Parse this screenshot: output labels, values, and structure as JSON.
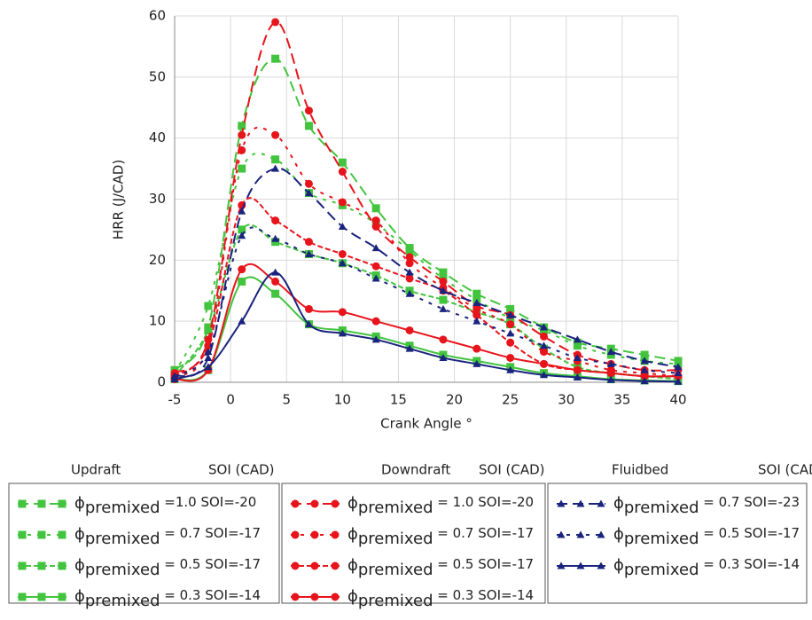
{
  "chart_data": {
    "type": "line",
    "x_label": "Crank Angle °",
    "y_label": "HRR (J/CAD)",
    "x": [
      -5,
      -2,
      1,
      4,
      7,
      10,
      13,
      16,
      19,
      22,
      25,
      28,
      31,
      34,
      37,
      40
    ],
    "xlim": [
      -5,
      40
    ],
    "xticks": [
      -5,
      0,
      5,
      10,
      15,
      20,
      25,
      30,
      35,
      40
    ],
    "ylim": [
      0,
      60
    ],
    "yticks": [
      0,
      10,
      20,
      30,
      40,
      50,
      60
    ],
    "grid": true,
    "legend_groups": [
      {
        "title": "Updraft",
        "subtitle": "SOI (CAD)"
      },
      {
        "title": "Downdraft",
        "subtitle": "SOI (CAD)"
      },
      {
        "title": "Fluidbed",
        "subtitle": "SOI (CAD)"
      }
    ],
    "series": [
      {
        "name": "ϕpremixed =1.0 SOI=-20",
        "color": "#43c43f",
        "marker": "square",
        "dash": "long",
        "values": [
          2,
          9,
          42,
          53,
          42,
          36,
          28.5,
          22,
          18,
          14.5,
          12,
          9,
          6.5,
          5.5,
          4.5,
          3.5
        ]
      },
      {
        "name": "ϕpremixed = 0.7 SOI=-17",
        "color": "#43c43f",
        "marker": "square",
        "dash": "dot",
        "values": [
          1.5,
          12.5,
          35,
          36.5,
          31,
          29,
          26,
          21.5,
          17,
          13.5,
          10.5,
          8.5,
          6,
          4.5,
          3.5,
          3
        ]
      },
      {
        "name": "ϕpremixed = 0.5 SOI=-17",
        "color": "#43c43f",
        "marker": "square",
        "dash": "short",
        "values": [
          1,
          8.5,
          25,
          23,
          21,
          19.5,
          17.5,
          15,
          13.5,
          11.5,
          9.5,
          5.5,
          2.5,
          1.5,
          1,
          0.5
        ]
      },
      {
        "name": "ϕpremixed = 0.3 SOI=-14",
        "color": "#43c43f",
        "marker": "square",
        "dash": "solid",
        "values": [
          0.5,
          2,
          16.5,
          14.5,
          9.5,
          8.5,
          7.5,
          6,
          4.5,
          3.5,
          2.5,
          1.5,
          1,
          0.5,
          0.3,
          0.2
        ]
      },
      {
        "name": "ϕpremixed = 1.0 SOI=-20",
        "color": "#e8141c",
        "marker": "circle",
        "dash": "long",
        "values": [
          1.5,
          7,
          40.5,
          59,
          44.5,
          34.5,
          25.5,
          20.5,
          16.5,
          12.5,
          11,
          7.5,
          4.5,
          3,
          2,
          2
        ]
      },
      {
        "name": "ϕpremixed = 0.7 SOI=-17",
        "color": "#e8141c",
        "marker": "circle",
        "dash": "dot",
        "values": [
          1,
          6,
          38,
          40.5,
          32.5,
          29.5,
          26.5,
          19.5,
          15.5,
          12,
          9.5,
          5,
          3.5,
          2,
          1.5,
          1
        ]
      },
      {
        "name": "ϕpremixed = 0.5 SOI=-17",
        "color": "#e8141c",
        "marker": "circle",
        "dash": "short",
        "values": [
          1,
          6,
          29,
          26.5,
          23,
          21,
          19,
          17,
          15,
          11,
          6.5,
          3,
          2,
          1.5,
          1,
          1
        ]
      },
      {
        "name": "ϕpremixed = 0.3 SOI=-14",
        "color": "#e8141c",
        "marker": "circle",
        "dash": "solid",
        "values": [
          0.5,
          2,
          18.5,
          16.5,
          12,
          11.5,
          10,
          8.5,
          7,
          5.5,
          4,
          3,
          2,
          1.5,
          1,
          1
        ]
      },
      {
        "name": "ϕpremixed = 0.7 SOI=-23",
        "color": "#1a237e",
        "marker": "triangle",
        "dash": "long",
        "values": [
          1,
          4,
          28,
          35,
          31,
          25.5,
          22,
          18,
          15,
          13,
          11,
          9,
          7,
          5,
          3.5,
          2.5
        ]
      },
      {
        "name": "ϕpremixed = 0.5 SOI=-17",
        "color": "#1a237e",
        "marker": "triangle",
        "dash": "dot",
        "values": [
          1,
          5,
          24,
          23.5,
          21,
          19.5,
          17,
          14.5,
          12,
          10,
          8,
          6,
          4,
          3,
          2,
          1.5
        ]
      },
      {
        "name": "ϕpremixed = 0.3 SOI=-14",
        "color": "#1a237e",
        "marker": "triangle",
        "dash": "solid",
        "values": [
          0.5,
          2.5,
          10,
          18,
          9.5,
          8,
          7,
          5.5,
          4,
          3,
          2,
          1.2,
          0.8,
          0.4,
          0.2,
          0.1
        ]
      }
    ]
  }
}
